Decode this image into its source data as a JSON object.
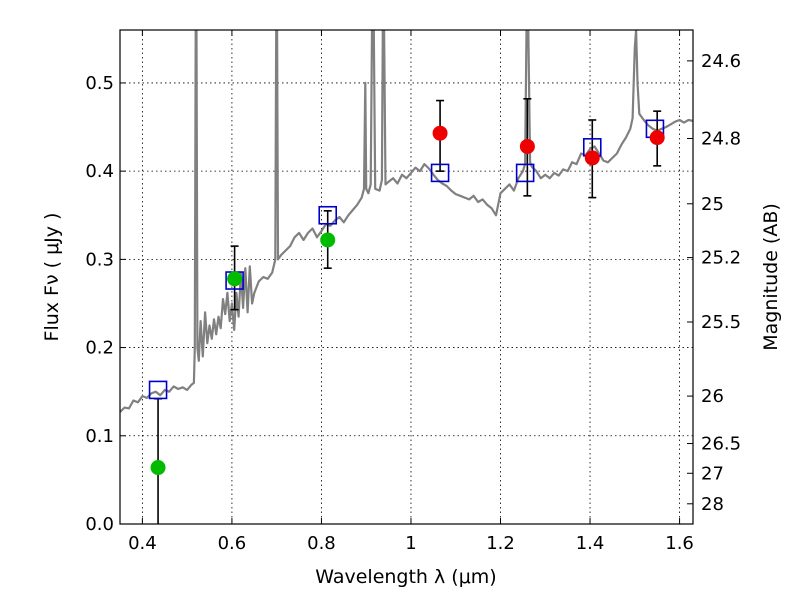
{
  "chart_data": {
    "type": "scatter",
    "xlabel": "Wavelength  λ (μm)",
    "ylabel_left": "Flux  Fν  ( μJy )",
    "ylabel_right": "Magnitude (AB)",
    "xlim": [
      0.35,
      1.63
    ],
    "ylim": [
      0.0,
      0.56
    ],
    "grid": true,
    "x_ticks": [
      0.4,
      0.6,
      0.8,
      1.0,
      1.2,
      1.4,
      1.6
    ],
    "x_tick_labels": [
      "0.4",
      "0.6",
      "0.8",
      "1",
      "1.2",
      "1.4",
      "1.6"
    ],
    "y_ticks": [
      0.0,
      0.1,
      0.2,
      0.3,
      0.4,
      0.5
    ],
    "y_tick_labels": [
      "0.0",
      "0.1",
      "0.2",
      "0.3",
      "0.4",
      "0.5"
    ],
    "mag_ticks": [
      {
        "label": "24.6",
        "flux": 0.525
      },
      {
        "label": "24.8",
        "flux": 0.437
      },
      {
        "label": "25",
        "flux": 0.363
      },
      {
        "label": "25.2",
        "flux": 0.302
      },
      {
        "label": "25.5",
        "flux": 0.229
      },
      {
        "label": "26",
        "flux": 0.145
      },
      {
        "label": "26.5",
        "flux": 0.0912
      },
      {
        "label": "27",
        "flux": 0.0575
      },
      {
        "label": "28",
        "flux": 0.0229
      }
    ],
    "model_spectrum": {
      "color": "#808080",
      "points": [
        [
          0.35,
          0.127
        ],
        [
          0.36,
          0.132
        ],
        [
          0.37,
          0.131
        ],
        [
          0.38,
          0.14
        ],
        [
          0.39,
          0.138
        ],
        [
          0.4,
          0.145
        ],
        [
          0.41,
          0.143
        ],
        [
          0.42,
          0.148
        ],
        [
          0.43,
          0.15
        ],
        [
          0.44,
          0.146
        ],
        [
          0.45,
          0.152
        ],
        [
          0.46,
          0.15
        ],
        [
          0.47,
          0.156
        ],
        [
          0.48,
          0.153
        ],
        [
          0.49,
          0.155
        ],
        [
          0.5,
          0.152
        ],
        [
          0.51,
          0.158
        ],
        [
          0.515,
          0.16
        ],
        [
          0.517,
          0.2
        ],
        [
          0.519,
          0.56
        ],
        [
          0.521,
          0.56
        ],
        [
          0.523,
          0.2
        ],
        [
          0.526,
          0.185
        ],
        [
          0.53,
          0.23
        ],
        [
          0.535,
          0.19
        ],
        [
          0.54,
          0.24
        ],
        [
          0.545,
          0.205
        ],
        [
          0.55,
          0.225
        ],
        [
          0.555,
          0.21
        ],
        [
          0.56,
          0.232
        ],
        [
          0.565,
          0.215
        ],
        [
          0.57,
          0.235
        ],
        [
          0.575,
          0.222
        ],
        [
          0.58,
          0.255
        ],
        [
          0.585,
          0.238
        ],
        [
          0.59,
          0.262
        ],
        [
          0.595,
          0.23
        ],
        [
          0.6,
          0.25
        ],
        [
          0.605,
          0.22
        ],
        [
          0.61,
          0.262
        ],
        [
          0.615,
          0.235
        ],
        [
          0.62,
          0.285
        ],
        [
          0.625,
          0.245
        ],
        [
          0.63,
          0.29
        ],
        [
          0.635,
          0.24
        ],
        [
          0.64,
          0.292
        ],
        [
          0.645,
          0.25
        ],
        [
          0.65,
          0.262
        ],
        [
          0.66,
          0.275
        ],
        [
          0.67,
          0.28
        ],
        [
          0.68,
          0.278
        ],
        [
          0.69,
          0.285
        ],
        [
          0.697,
          0.3
        ],
        [
          0.699,
          0.56
        ],
        [
          0.701,
          0.56
        ],
        [
          0.703,
          0.3
        ],
        [
          0.71,
          0.305
        ],
        [
          0.72,
          0.31
        ],
        [
          0.73,
          0.315
        ],
        [
          0.74,
          0.325
        ],
        [
          0.75,
          0.33
        ],
        [
          0.76,
          0.322
        ],
        [
          0.77,
          0.33
        ],
        [
          0.78,
          0.335
        ],
        [
          0.79,
          0.325
        ],
        [
          0.8,
          0.332
        ],
        [
          0.81,
          0.34
        ],
        [
          0.82,
          0.338
        ],
        [
          0.83,
          0.344
        ],
        [
          0.84,
          0.348
        ],
        [
          0.85,
          0.342
        ],
        [
          0.86,
          0.35
        ],
        [
          0.87,
          0.356
        ],
        [
          0.88,
          0.362
        ],
        [
          0.89,
          0.37
        ],
        [
          0.895,
          0.38
        ],
        [
          0.898,
          0.5
        ],
        [
          0.9,
          0.38
        ],
        [
          0.905,
          0.375
        ],
        [
          0.91,
          0.385
        ],
        [
          0.913,
          0.56
        ],
        [
          0.917,
          0.56
        ],
        [
          0.92,
          0.38
        ],
        [
          0.93,
          0.378
        ],
        [
          0.935,
          0.39
        ],
        [
          0.937,
          0.56
        ],
        [
          0.94,
          0.56
        ],
        [
          0.943,
          0.385
        ],
        [
          0.95,
          0.388
        ],
        [
          0.96,
          0.392
        ],
        [
          0.97,
          0.386
        ],
        [
          0.98,
          0.396
        ],
        [
          0.99,
          0.392
        ],
        [
          1.0,
          0.398
        ],
        [
          1.01,
          0.404
        ],
        [
          1.02,
          0.4
        ],
        [
          1.03,
          0.408
        ],
        [
          1.04,
          0.403
        ],
        [
          1.05,
          0.396
        ],
        [
          1.06,
          0.39
        ],
        [
          1.07,
          0.386
        ],
        [
          1.08,
          0.383
        ],
        [
          1.09,
          0.378
        ],
        [
          1.1,
          0.374
        ],
        [
          1.11,
          0.372
        ],
        [
          1.12,
          0.37
        ],
        [
          1.13,
          0.368
        ],
        [
          1.14,
          0.372
        ],
        [
          1.15,
          0.365
        ],
        [
          1.16,
          0.368
        ],
        [
          1.17,
          0.362
        ],
        [
          1.18,
          0.358
        ],
        [
          1.19,
          0.35
        ],
        [
          1.2,
          0.375
        ],
        [
          1.21,
          0.38
        ],
        [
          1.22,
          0.385
        ],
        [
          1.23,
          0.378
        ],
        [
          1.24,
          0.392
        ],
        [
          1.25,
          0.4
        ],
        [
          1.255,
          0.408
        ],
        [
          1.258,
          0.56
        ],
        [
          1.262,
          0.56
        ],
        [
          1.266,
          0.41
        ],
        [
          1.27,
          0.405
        ],
        [
          1.28,
          0.4
        ],
        [
          1.29,
          0.392
        ],
        [
          1.3,
          0.396
        ],
        [
          1.31,
          0.392
        ],
        [
          1.32,
          0.398
        ],
        [
          1.33,
          0.395
        ],
        [
          1.34,
          0.402
        ],
        [
          1.35,
          0.4
        ],
        [
          1.36,
          0.41
        ],
        [
          1.37,
          0.408
        ],
        [
          1.38,
          0.42
        ],
        [
          1.39,
          0.418
        ],
        [
          1.4,
          0.425
        ],
        [
          1.41,
          0.428
        ],
        [
          1.42,
          0.42
        ],
        [
          1.43,
          0.412
        ],
        [
          1.44,
          0.41
        ],
        [
          1.45,
          0.415
        ],
        [
          1.46,
          0.42
        ],
        [
          1.47,
          0.43
        ],
        [
          1.48,
          0.438
        ],
        [
          1.49,
          0.448
        ],
        [
          1.495,
          0.46
        ],
        [
          1.5,
          0.54
        ],
        [
          1.503,
          0.56
        ],
        [
          1.506,
          0.5
        ],
        [
          1.51,
          0.465
        ],
        [
          1.52,
          0.458
        ],
        [
          1.53,
          0.452
        ],
        [
          1.54,
          0.448
        ],
        [
          1.55,
          0.446
        ],
        [
          1.56,
          0.448
        ],
        [
          1.57,
          0.45
        ],
        [
          1.58,
          0.453
        ],
        [
          1.59,
          0.456
        ],
        [
          1.6,
          0.458
        ],
        [
          1.61,
          0.455
        ],
        [
          1.62,
          0.458
        ],
        [
          1.63,
          0.457
        ]
      ]
    },
    "model_photometry": {
      "color": "#0000cc",
      "points": [
        {
          "x": 0.435,
          "y": 0.152
        },
        {
          "x": 0.606,
          "y": 0.276
        },
        {
          "x": 0.814,
          "y": 0.35
        },
        {
          "x": 1.065,
          "y": 0.398
        },
        {
          "x": 1.255,
          "y": 0.398
        },
        {
          "x": 1.405,
          "y": 0.427
        },
        {
          "x": 1.545,
          "y": 0.448
        }
      ]
    },
    "observed_optical": {
      "color": "#00bb00",
      "points": [
        {
          "x": 0.435,
          "y": 0.064,
          "ylo": 0.0,
          "yhi": 0.142
        },
        {
          "x": 0.606,
          "y": 0.278,
          "ylo": 0.243,
          "yhi": 0.315
        },
        {
          "x": 0.814,
          "y": 0.322,
          "ylo": 0.29,
          "yhi": 0.355
        }
      ]
    },
    "observed_nir": {
      "color": "#ee0000",
      "points": [
        {
          "x": 1.065,
          "y": 0.443,
          "ylo": 0.4,
          "yhi": 0.48
        },
        {
          "x": 1.26,
          "y": 0.428,
          "ylo": 0.372,
          "yhi": 0.482
        },
        {
          "x": 1.405,
          "y": 0.415,
          "ylo": 0.37,
          "yhi": 0.458
        },
        {
          "x": 1.55,
          "y": 0.438,
          "ylo": 0.406,
          "yhi": 0.468
        }
      ]
    }
  }
}
